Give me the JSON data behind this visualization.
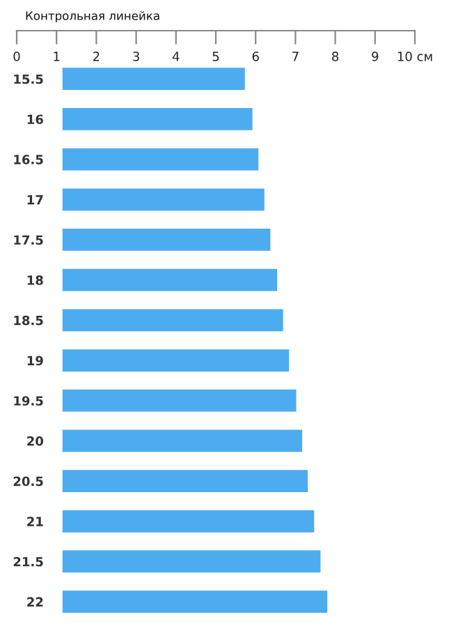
{
  "chart_data": {
    "type": "bar",
    "orientation": "horizontal",
    "title": "Контрольная линейка",
    "categories": [
      "15.5",
      "16",
      "16.5",
      "17",
      "17.5",
      "18",
      "18.5",
      "19",
      "19.5",
      "20",
      "20.5",
      "21",
      "21.5",
      "22"
    ],
    "base": [
      1.15,
      1.15,
      1.15,
      1.15,
      1.15,
      1.15,
      1.15,
      1.15,
      1.15,
      1.15,
      1.15,
      1.15,
      1.15,
      1.15
    ],
    "values": [
      4.58,
      4.77,
      4.92,
      5.07,
      5.22,
      5.39,
      5.54,
      5.69,
      5.87,
      6.02,
      6.16,
      6.32,
      6.48,
      6.65
    ],
    "color": "#4dabf0",
    "xlim": [
      0,
      10
    ],
    "xticks": [
      0,
      1,
      2,
      3,
      4,
      5,
      6,
      7,
      8,
      9,
      {
        "value": 10,
        "label": "10 см"
      }
    ],
    "grid": false,
    "legend": false
  }
}
